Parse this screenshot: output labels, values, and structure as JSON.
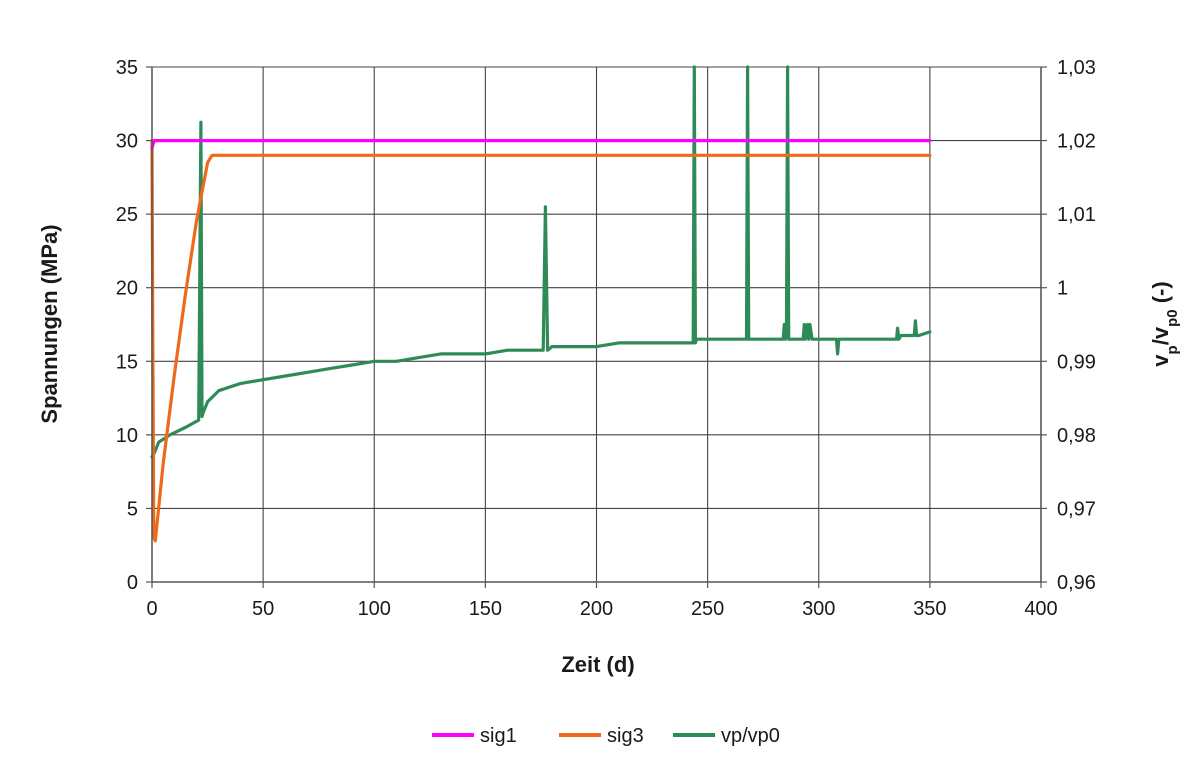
{
  "chart_data": {
    "type": "line",
    "title": "",
    "xlabel": "Zeit (d)",
    "ylabel": "Spannungen (MPa)",
    "y2label": {
      "main": "v",
      "sub1": "p",
      "mid": "/v",
      "sub2": "p0",
      "tail": " (-)"
    },
    "xlim": [
      0,
      400
    ],
    "ylim": [
      0,
      35
    ],
    "y2lim": [
      0.96,
      1.03
    ],
    "x_ticks": [
      "0",
      "50",
      "100",
      "150",
      "200",
      "250",
      "300",
      "350",
      "400"
    ],
    "y_ticks": [
      "0",
      "5",
      "10",
      "15",
      "20",
      "25",
      "30",
      "35"
    ],
    "y2_ticks": [
      "0,96",
      "0,97",
      "0,98",
      "0,99",
      "1",
      "1,01",
      "1,02",
      "1,03"
    ],
    "grid": true,
    "legend_position": "bottom-center",
    "series": [
      {
        "name": "sig1",
        "axis": "left",
        "color": "#ff00ff",
        "x": [
          0,
          1,
          2,
          100,
          200,
          300,
          350
        ],
        "y": [
          29.5,
          30.0,
          30.0,
          30.0,
          30.0,
          30.0,
          30.0
        ]
      },
      {
        "name": "sig3",
        "axis": "left",
        "color": "#ee6a1a",
        "x": [
          0,
          0.3,
          0.8,
          1.5,
          5,
          10,
          15,
          20,
          25,
          27,
          30,
          100,
          200,
          300,
          350
        ],
        "y": [
          30.0,
          18.0,
          3.0,
          2.8,
          8.0,
          14.0,
          19.5,
          24.5,
          28.5,
          29.0,
          29.0,
          29.0,
          29.0,
          29.0,
          29.0
        ]
      },
      {
        "name": "vp/vp0",
        "axis": "right",
        "color": "#2e8b57",
        "x": [
          0,
          1,
          3,
          8,
          15,
          21,
          22,
          22.5,
          23,
          25,
          30,
          35,
          40,
          50,
          60,
          70,
          80,
          90,
          100,
          110,
          120,
          130,
          140,
          150,
          160,
          170,
          176,
          177,
          178,
          180,
          190,
          200,
          210,
          220,
          230,
          243.5,
          244,
          244.5,
          245,
          250,
          260,
          267.5,
          268,
          268.5,
          270,
          280,
          284,
          284.5,
          285,
          285.5,
          286,
          286.5,
          287,
          290,
          293,
          293.5,
          294,
          295,
          295.5,
          296,
          297,
          300,
          308,
          308.5,
          309,
          310,
          320,
          330,
          335,
          335.5,
          336,
          337,
          340,
          343,
          343.5,
          344,
          345,
          350
        ],
        "y": [
          0.977,
          0.9775,
          0.979,
          0.98,
          0.981,
          0.982,
          1.0225,
          0.9825,
          0.983,
          0.9845,
          0.986,
          0.9865,
          0.987,
          0.9875,
          0.988,
          0.9885,
          0.989,
          0.9895,
          0.99,
          0.99,
          0.9905,
          0.991,
          0.991,
          0.991,
          0.9915,
          0.9915,
          0.9915,
          1.011,
          0.9915,
          0.992,
          0.992,
          0.992,
          0.9925,
          0.9925,
          0.9925,
          0.9925,
          1.03,
          0.9925,
          0.993,
          0.993,
          0.993,
          0.993,
          1.03,
          0.993,
          0.993,
          0.993,
          0.993,
          0.995,
          0.993,
          0.995,
          1.03,
          0.993,
          0.993,
          0.993,
          0.993,
          0.995,
          0.993,
          0.995,
          0.993,
          0.995,
          0.993,
          0.993,
          0.993,
          0.991,
          0.993,
          0.993,
          0.993,
          0.993,
          0.993,
          0.9945,
          0.993,
          0.9935,
          0.9935,
          0.9935,
          0.9955,
          0.9935,
          0.9935,
          0.994
        ]
      }
    ]
  }
}
